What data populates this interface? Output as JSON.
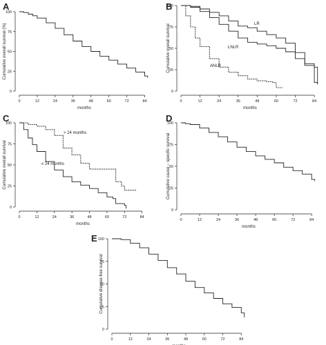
{
  "figure": {
    "background": "#ffffff",
    "line_color": "#222222"
  },
  "chart_data": [
    {
      "panel": "A",
      "type": "line",
      "xlabel": "months",
      "ylabel": "Cumulative overall survival (%)",
      "xlim": [
        0,
        87
      ],
      "ylim": [
        0,
        100
      ],
      "xticks": [
        0,
        12,
        24,
        36,
        48,
        60,
        72,
        84
      ],
      "yticks": [
        0,
        25,
        50,
        75,
        100
      ],
      "grid": false,
      "series": [
        {
          "style": "solid",
          "x": [
            0,
            3,
            6,
            9,
            12,
            18,
            24,
            30,
            36,
            42,
            48,
            54,
            60,
            66,
            72,
            78,
            84,
            86
          ],
          "y": [
            100,
            99,
            97,
            95,
            92,
            86,
            79,
            71,
            63,
            56,
            50,
            44,
            39,
            34,
            29,
            24,
            19,
            17
          ]
        }
      ]
    },
    {
      "panel": "B",
      "type": "line",
      "xlabel": "months",
      "ylabel": "Cumulative overall survival",
      "xlim": [
        0,
        87
      ],
      "ylim": [
        0,
        100
      ],
      "xticks": [
        0,
        12,
        24,
        36,
        48,
        60,
        72,
        84
      ],
      "yticks": [
        0,
        25,
        50,
        75,
        100
      ],
      "grid": false,
      "series": [
        {
          "name": "LR",
          "style": "solid",
          "x": [
            0,
            6,
            12,
            18,
            24,
            30,
            36,
            42,
            48,
            54,
            60,
            66,
            72,
            78,
            84,
            86
          ],
          "y": [
            100,
            99,
            96,
            92,
            88,
            82,
            76,
            74,
            70,
            66,
            62,
            56,
            45,
            30,
            10,
            8
          ]
        },
        {
          "name": "LNLR",
          "style": "solid",
          "x": [
            0,
            6,
            12,
            18,
            24,
            30,
            36,
            42,
            48,
            54,
            60,
            66,
            72,
            78,
            84,
            86
          ],
          "y": [
            100,
            98,
            93,
            86,
            78,
            70,
            62,
            57,
            55,
            53,
            50,
            46,
            38,
            32,
            28,
            8
          ]
        },
        {
          "name": "ANLR",
          "style": "dotted",
          "x": [
            0,
            3,
            6,
            9,
            12,
            18,
            24,
            30,
            36,
            42,
            48,
            54,
            58,
            60,
            62,
            64
          ],
          "y": [
            100,
            88,
            75,
            62,
            52,
            38,
            28,
            22,
            18,
            14,
            12,
            11,
            10,
            4,
            4,
            4
          ]
        }
      ]
    },
    {
      "panel": "C",
      "type": "line",
      "xlabel": "months",
      "ylabel": "Cumulative overall survival",
      "xlim": [
        0,
        87
      ],
      "ylim": [
        0,
        100
      ],
      "xticks": [
        0,
        12,
        24,
        36,
        48,
        60,
        72,
        84
      ],
      "yticks": [
        0,
        25,
        50,
        75,
        100
      ],
      "grid": false,
      "series": [
        {
          "name": "> 24 months",
          "style": "dotted",
          "x": [
            0,
            6,
            12,
            18,
            24,
            30,
            36,
            42,
            48,
            54,
            60,
            66,
            70,
            72,
            78,
            80
          ],
          "y": [
            100,
            98,
            96,
            92,
            85,
            70,
            62,
            52,
            45,
            45,
            45,
            30,
            25,
            20,
            20,
            20
          ]
        },
        {
          "name": "≤ 24 months",
          "style": "solid",
          "x": [
            0,
            3,
            6,
            9,
            12,
            18,
            24,
            30,
            36,
            42,
            48,
            54,
            60,
            64,
            66,
            70,
            72,
            73
          ],
          "y": [
            100,
            92,
            82,
            74,
            66,
            54,
            44,
            36,
            30,
            26,
            22,
            17,
            12,
            10,
            4,
            4,
            2,
            -2
          ]
        }
      ]
    },
    {
      "panel": "D",
      "type": "line",
      "xlabel": "months",
      "ylabel": "Cumulative cause − specific survival",
      "xlim": [
        0,
        87
      ],
      "ylim": [
        0,
        100
      ],
      "xticks": [
        0,
        12,
        24,
        36,
        48,
        60,
        72,
        84
      ],
      "yticks": [
        0,
        25,
        50,
        75,
        100
      ],
      "grid": false,
      "series": [
        {
          "style": "solid",
          "x": [
            0,
            3,
            6,
            12,
            18,
            24,
            30,
            36,
            42,
            48,
            54,
            60,
            66,
            72,
            78,
            84,
            86
          ],
          "y": [
            100,
            99,
            98,
            94,
            89,
            84,
            78,
            72,
            67,
            62,
            58,
            54,
            49,
            45,
            41,
            35,
            33
          ]
        }
      ]
    },
    {
      "panel": "E",
      "type": "line",
      "xlabel": "months",
      "ylabel": "Cumulative disease-free survival",
      "xlim": [
        0,
        87
      ],
      "ylim": [
        0,
        100
      ],
      "xticks": [
        0,
        12,
        24,
        36,
        48,
        60,
        72,
        84
      ],
      "yticks": [
        0,
        25,
        50,
        75,
        100
      ],
      "grid": false,
      "series": [
        {
          "style": "solid",
          "x": [
            0,
            3,
            6,
            12,
            18,
            24,
            30,
            36,
            42,
            48,
            54,
            60,
            66,
            72,
            78,
            84,
            86
          ],
          "y": [
            100,
            100,
            99,
            95,
            90,
            83,
            76,
            68,
            61,
            53,
            46,
            40,
            34,
            28,
            24,
            18,
            13
          ]
        }
      ]
    }
  ]
}
